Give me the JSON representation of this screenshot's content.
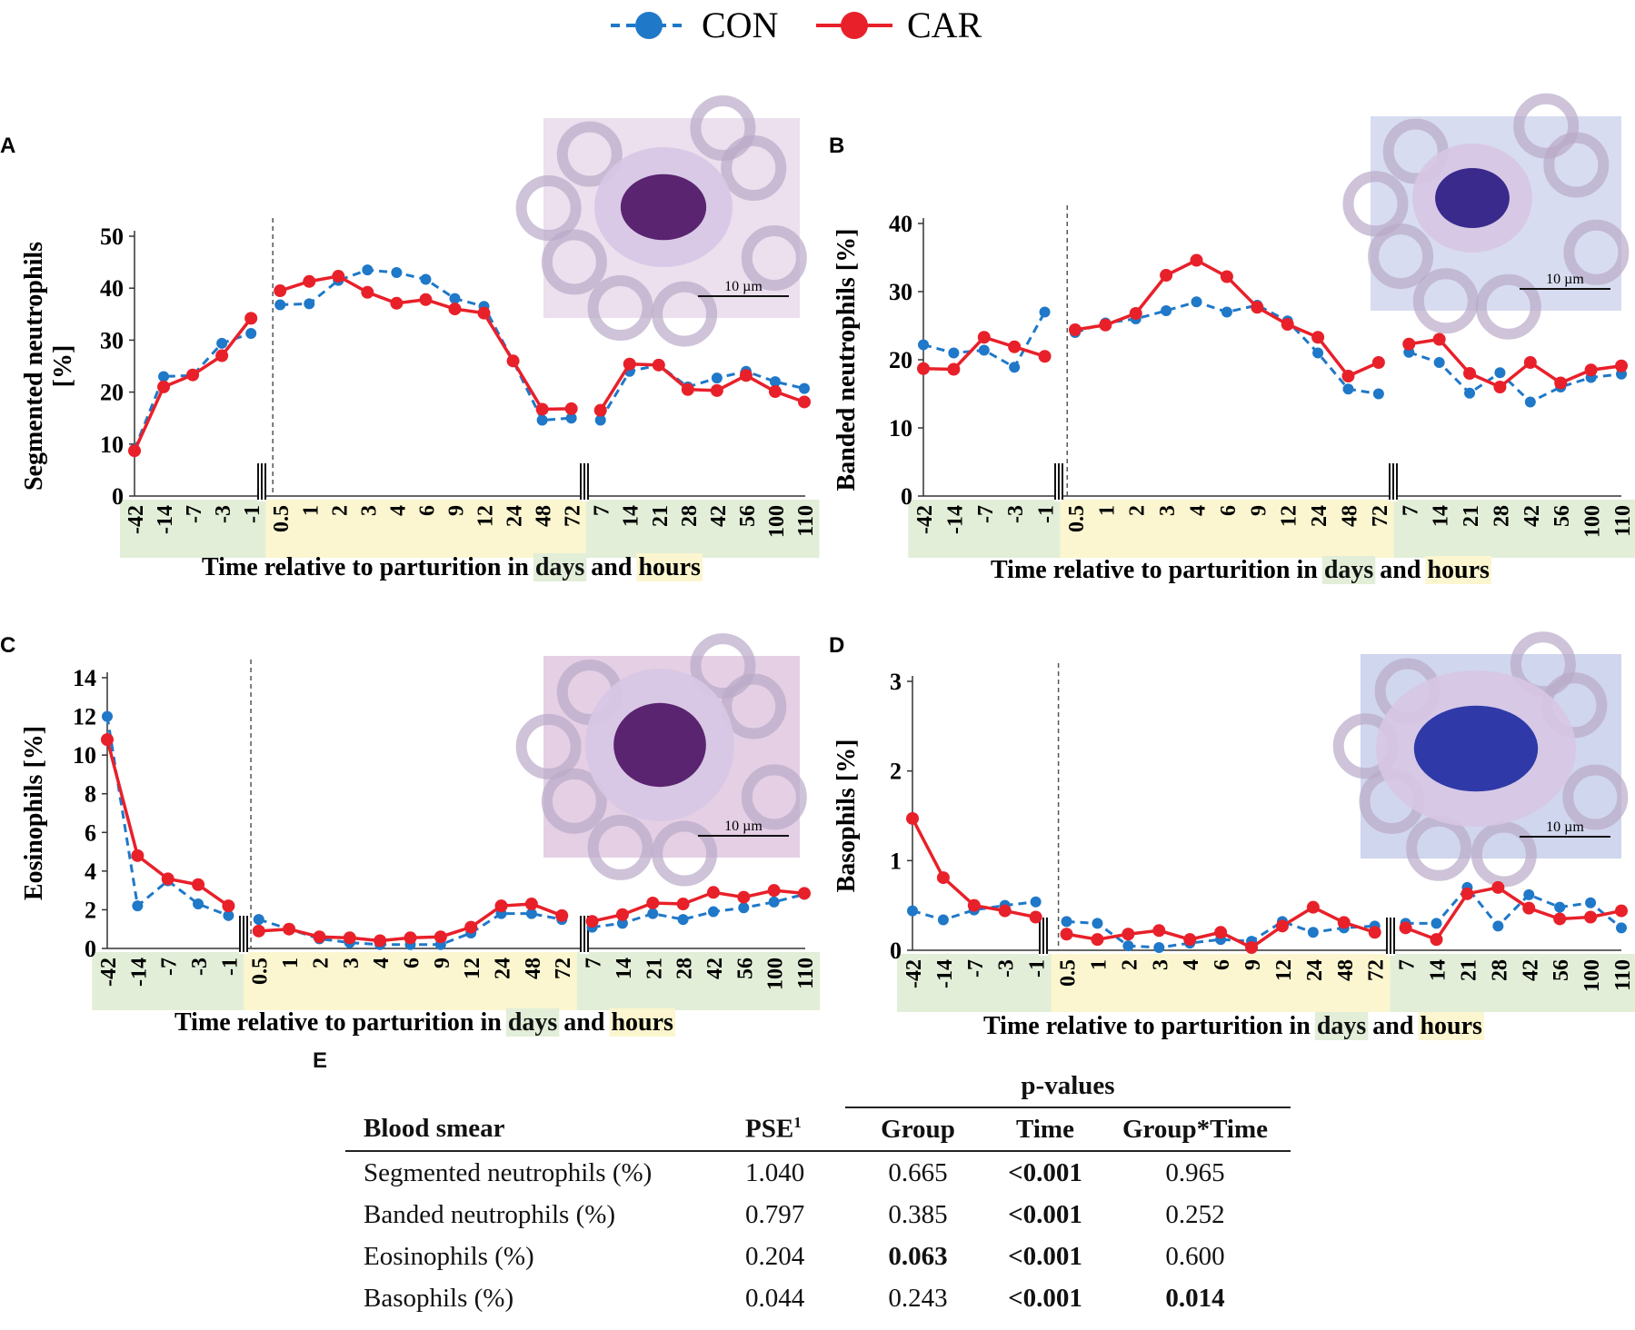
{
  "legend": {
    "con_label": "CON",
    "car_label": "CAR"
  },
  "colors": {
    "con": "#1f78c8",
    "car": "#e8202a",
    "days_band": "#e2eed8",
    "hours_band": "#fbf6cf"
  },
  "x_axis_label": {
    "prefix": "Time relative to parturition in ",
    "days": "days",
    "middle": " and ",
    "hours": "hours"
  },
  "scale_bar_label": "10 µm",
  "chart_data": [
    {
      "panel": "A",
      "type": "line",
      "ylabel_lines": [
        "Segmented neutrophils",
        "[%]"
      ],
      "ylim": [
        0,
        50
      ],
      "yticks": [
        0,
        10,
        20,
        30,
        40,
        50
      ],
      "categories": [
        "-42",
        "-14",
        "-7",
        "-3",
        "-1",
        "0.5",
        "1",
        "2",
        "3",
        "4",
        "6",
        "9",
        "12",
        "24",
        "48",
        "72",
        "7",
        "14",
        "21",
        "28",
        "42",
        "56",
        "100",
        "110"
      ],
      "series": [
        {
          "name": "CON",
          "values": [
            9,
            23,
            23.2,
            29.4,
            31.3,
            36.8,
            37,
            41.5,
            43.5,
            43,
            41.7,
            38,
            36.5,
            26,
            14.6,
            15,
            14.6,
            24,
            25.2,
            21,
            22.7,
            24,
            22,
            20.7
          ]
        },
        {
          "name": "CAR",
          "values": [
            8.7,
            21,
            23.3,
            27,
            34.2,
            39.5,
            41.3,
            42.3,
            39.2,
            37.1,
            37.8,
            36,
            35.2,
            26,
            16.7,
            16.8,
            16.5,
            25.4,
            25.2,
            20.5,
            20.3,
            23.2,
            20.1,
            18.1
          ]
        }
      ]
    },
    {
      "panel": "B",
      "type": "line",
      "ylabel_lines": [
        "Banded neutrophils [%]"
      ],
      "ylim": [
        0,
        40
      ],
      "yticks": [
        0,
        10,
        20,
        30,
        40
      ],
      "categories": [
        "-42",
        "-14",
        "-7",
        "-3",
        "-1",
        "0.5",
        "1",
        "2",
        "3",
        "4",
        "6",
        "9",
        "12",
        "24",
        "48",
        "72",
        "7",
        "14",
        "21",
        "28",
        "42",
        "56",
        "100",
        "110"
      ],
      "series": [
        {
          "name": "CON",
          "values": [
            22.2,
            21,
            21.4,
            18.9,
            27,
            24,
            25.4,
            26,
            27.2,
            28.5,
            27,
            28,
            25.7,
            21,
            15.7,
            15,
            21.1,
            19.6,
            15.1,
            18.1,
            13.8,
            16,
            17.4,
            17.9
          ]
        },
        {
          "name": "CAR",
          "values": [
            18.7,
            18.6,
            23.3,
            21.9,
            20.5,
            24.4,
            25.1,
            26.8,
            32.4,
            34.6,
            32.2,
            27.7,
            25.2,
            23.3,
            17.6,
            19.6,
            22.3,
            23,
            18,
            16,
            19.6,
            16.6,
            18.5,
            19.1
          ]
        }
      ]
    },
    {
      "panel": "C",
      "type": "line",
      "ylabel_lines": [
        "Eosinophils [%]"
      ],
      "ylim": [
        0,
        14
      ],
      "yticks": [
        0,
        2,
        4,
        6,
        8,
        10,
        12,
        14
      ],
      "categories": [
        "-42",
        "-14",
        "-7",
        "-3",
        "-1",
        "0.5",
        "1",
        "2",
        "3",
        "4",
        "6",
        "9",
        "12",
        "24",
        "48",
        "72",
        "7",
        "14",
        "21",
        "28",
        "42",
        "56",
        "100",
        "110"
      ],
      "series": [
        {
          "name": "CON",
          "values": [
            12,
            2.2,
            3.5,
            2.3,
            1.7,
            1.5,
            1,
            0.5,
            0.3,
            0.2,
            0.2,
            0.2,
            0.8,
            1.8,
            1.8,
            1.5,
            1.1,
            1.3,
            1.8,
            1.5,
            1.9,
            2.1,
            2.4,
            2.8
          ]
        },
        {
          "name": "CAR",
          "values": [
            10.8,
            4.8,
            3.6,
            3.3,
            2.2,
            0.9,
            1,
            0.6,
            0.55,
            0.4,
            0.55,
            0.6,
            1.1,
            2.2,
            2.3,
            1.7,
            1.4,
            1.75,
            2.35,
            2.3,
            2.9,
            2.65,
            3,
            2.85
          ]
        }
      ]
    },
    {
      "panel": "D",
      "type": "line",
      "ylabel_lines": [
        "Basophils [%]"
      ],
      "ylim": [
        0,
        3
      ],
      "yticks": [
        0,
        1,
        2,
        3
      ],
      "categories": [
        "-42",
        "-14",
        "-7",
        "-3",
        "-1",
        "0.5",
        "1",
        "2",
        "3",
        "4",
        "6",
        "9",
        "12",
        "24",
        "48",
        "72",
        "7",
        "14",
        "21",
        "28",
        "42",
        "56",
        "100",
        "110"
      ],
      "series": [
        {
          "name": "CON",
          "values": [
            0.44,
            0.34,
            0.45,
            0.5,
            0.54,
            0.32,
            0.3,
            0.05,
            0.03,
            0.08,
            0.12,
            0.1,
            0.32,
            0.2,
            0.25,
            0.27,
            0.3,
            0.3,
            0.7,
            0.27,
            0.62,
            0.48,
            0.53,
            0.25
          ]
        },
        {
          "name": "CAR",
          "values": [
            1.47,
            0.81,
            0.5,
            0.44,
            0.37,
            0.18,
            0.12,
            0.18,
            0.22,
            0.12,
            0.2,
            0.03,
            0.27,
            0.48,
            0.31,
            0.2,
            0.25,
            0.12,
            0.63,
            0.7,
            0.47,
            0.35,
            0.37,
            0.44
          ]
        }
      ]
    },
    {
      "panel": "E",
      "type": "table",
      "spanner": "p-values",
      "columns": [
        "Blood smear",
        "PSE",
        "Group",
        "Time",
        "Group*Time"
      ],
      "pse_superscript": "1",
      "rows": [
        {
          "label": "Segmented neutrophils (%)",
          "pse": "1.040",
          "group": "0.665",
          "time": "<0.001",
          "gxt": "0.965",
          "bold": [
            false,
            false,
            true,
            false
          ]
        },
        {
          "label": "Banded neutrophils (%)",
          "pse": "0.797",
          "group": "0.385",
          "time": "<0.001",
          "gxt": "0.252",
          "bold": [
            false,
            false,
            true,
            false
          ]
        },
        {
          "label": "Eosinophils (%)",
          "pse": "0.204",
          "group": "0.063",
          "time": "<0.001",
          "gxt": "0.600",
          "bold": [
            false,
            true,
            true,
            false
          ]
        },
        {
          "label": "Basophils (%)",
          "pse": "0.044",
          "group": "0.243",
          "time": "<0.001",
          "gxt": "0.014",
          "bold": [
            false,
            false,
            true,
            true
          ]
        }
      ]
    }
  ]
}
